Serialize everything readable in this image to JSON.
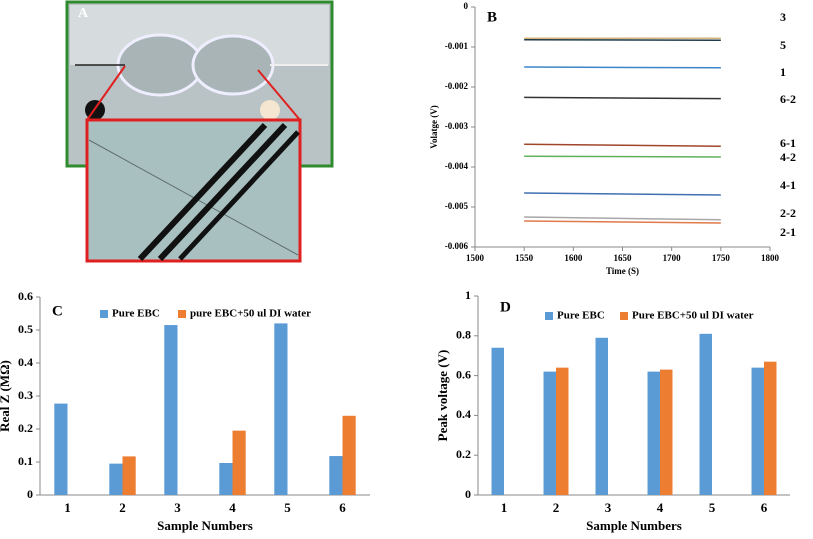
{
  "photo": {
    "label": "A"
  },
  "chart_data": [
    {
      "type": "line",
      "label": "B",
      "x_label": "Time (S)",
      "y_label": "Volatge (V)",
      "x": [
        1550,
        1750
      ],
      "xlim": [
        1500,
        1800
      ],
      "xticks": [
        1500,
        1550,
        1600,
        1650,
        1700,
        1750,
        1800
      ],
      "ylim": [
        -0.006,
        0
      ],
      "yticks": [
        0,
        -0.001,
        -0.002,
        -0.003,
        -0.004,
        -0.005,
        -0.006
      ],
      "series": [
        {
          "name": "3",
          "color": "#d6b47a",
          "values": [
            -0.00078,
            -0.00078
          ]
        },
        {
          "name": "5",
          "color": "#1f3a4a",
          "values": [
            -0.00082,
            -0.00083
          ]
        },
        {
          "name": "1",
          "color": "#3a86c8",
          "values": [
            -0.0015,
            -0.00152
          ]
        },
        {
          "name": "6-2",
          "color": "#333333",
          "values": [
            -0.00226,
            -0.00229
          ]
        },
        {
          "name": "6-1",
          "color": "#a0452a",
          "values": [
            -0.00343,
            -0.00348
          ]
        },
        {
          "name": "4-2",
          "color": "#5fb15a",
          "values": [
            -0.00373,
            -0.00375
          ]
        },
        {
          "name": "4-1",
          "color": "#3f6fb0",
          "values": [
            -0.00465,
            -0.0047
          ]
        },
        {
          "name": "2-2",
          "color": "#a8a8a8",
          "values": [
            -0.00525,
            -0.00532
          ]
        },
        {
          "name": "2-1",
          "color": "#e07a4a",
          "values": [
            -0.00535,
            -0.0054
          ]
        }
      ]
    },
    {
      "type": "bar",
      "label": "C",
      "x_label": "Sample Numbers",
      "y_label": "Real Z (MΩ)",
      "categories": [
        "1",
        "2",
        "3",
        "4",
        "5",
        "6"
      ],
      "ylim": [
        0,
        0.6
      ],
      "yticks": [
        0,
        0.1,
        0.2,
        0.3,
        0.4,
        0.5,
        0.6
      ],
      "series": [
        {
          "name": "Pure EBC",
          "color": "#5b9bd5",
          "values": [
            0.277,
            0.095,
            0.515,
            0.097,
            0.52,
            0.118
          ]
        },
        {
          "name": "pure EBC+50 ul DI water",
          "color": "#ed7d31",
          "values": [
            null,
            0.117,
            null,
            0.195,
            null,
            0.24
          ]
        }
      ]
    },
    {
      "type": "bar",
      "label": "D",
      "x_label": "Sample Numbers",
      "y_label": "Peak voltage (V)",
      "categories": [
        "1",
        "2",
        "3",
        "4",
        "5",
        "6"
      ],
      "ylim": [
        0,
        1
      ],
      "yticks": [
        0,
        0.2,
        0.4,
        0.6,
        0.8,
        1
      ],
      "series": [
        {
          "name": "Pure EBC",
          "color": "#5b9bd5",
          "values": [
            0.74,
            0.62,
            0.79,
            0.62,
            0.81,
            0.64
          ]
        },
        {
          "name": "Pure EBC+50 ul DI water",
          "color": "#ed7d31",
          "values": [
            null,
            0.64,
            null,
            0.63,
            null,
            0.67
          ]
        }
      ]
    }
  ]
}
